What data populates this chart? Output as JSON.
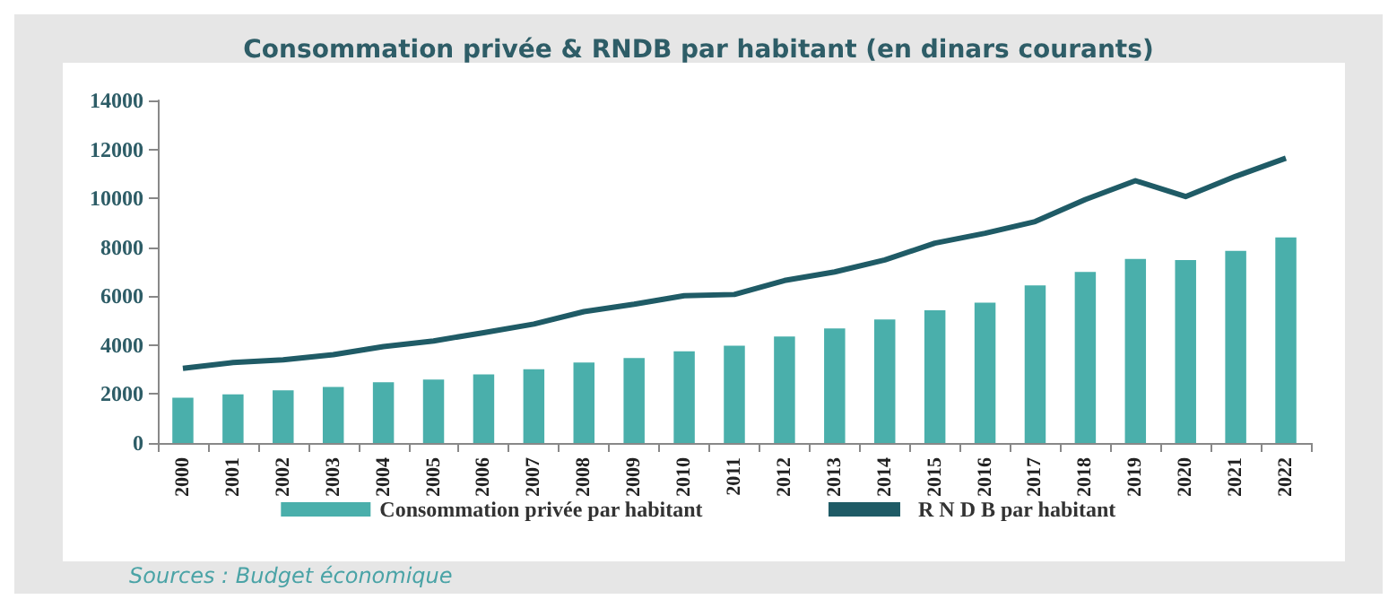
{
  "chart_data": {
    "type": "bar",
    "title": "Consommation privée & RNDB par habitant (en dinars courants)",
    "categories": [
      "2000",
      "2001",
      "2002",
      "2003",
      "2004",
      "2005",
      "2006",
      "2007",
      "2008",
      "2009",
      "2010",
      "2011",
      "2012",
      "2013",
      "2014",
      "2015",
      "2016",
      "2017",
      "2018",
      "2019",
      "2020",
      "2021",
      "2022"
    ],
    "series": [
      {
        "name": "Consommation privée par habitant",
        "color": "#4aafab",
        "values": [
          1850,
          1990,
          2150,
          2290,
          2480,
          2590,
          2800,
          3010,
          3290,
          3470,
          3750,
          3980,
          4350,
          4680,
          5050,
          5420,
          5740,
          6440,
          6990,
          7520,
          7480,
          7850,
          8400
        ]
      },
      {
        "name": "R N D B par habitant",
        "type": "line",
        "color": "#1f5b66",
        "values": [
          3050,
          3290,
          3400,
          3610,
          3940,
          4170,
          4510,
          4860,
          5370,
          5670,
          6020,
          6070,
          6640,
          6990,
          7480,
          8170,
          8570,
          9050,
          9950,
          10720,
          10070,
          10900,
          11640
        ]
      }
    ],
    "ylim": [
      0,
      14000
    ],
    "yticks": [
      0,
      2000,
      4000,
      6000,
      8000,
      10000,
      12000,
      14000
    ],
    "grid": false,
    "legend": "bottom",
    "marker": "none",
    "annotations": [
      "Sources : Budget économique"
    ]
  }
}
